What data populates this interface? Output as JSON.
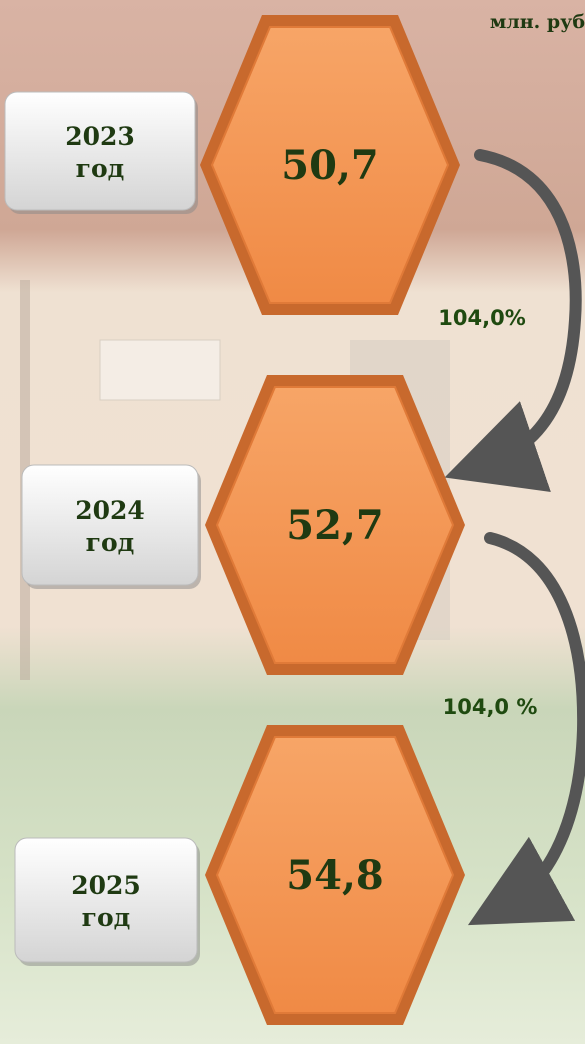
{
  "unit": "млн. руб",
  "steps": [
    {
      "year": "2023",
      "year_word": "год",
      "value": "50,7"
    },
    {
      "year": "2024",
      "year_word": "год",
      "value": "52,7"
    },
    {
      "year": "2025",
      "year_word": "год",
      "value": "54,8"
    }
  ],
  "growth": [
    "104,0%",
    "104,0 %"
  ]
}
